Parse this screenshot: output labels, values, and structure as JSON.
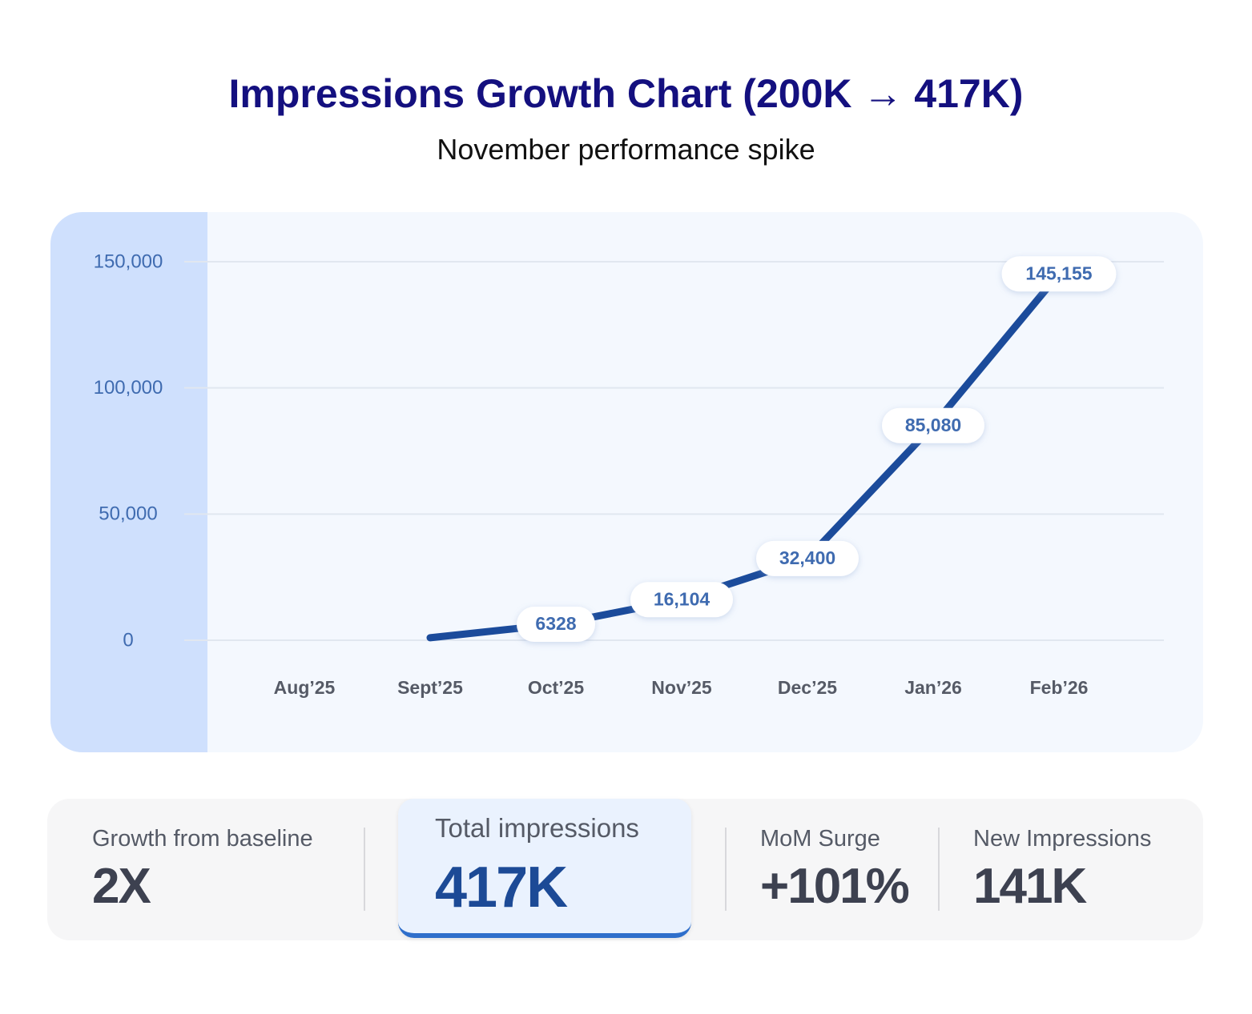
{
  "chart_data": {
    "type": "line",
    "title": "Impressions Growth Chart (200K → 417K)",
    "subtitle": "November performance spike",
    "categories": [
      "Aug’25",
      "Sept’25",
      "Oct’25",
      "Nov’25",
      "Dec’25",
      "Jan’26",
      "Feb’26"
    ],
    "series": [
      {
        "name": "Impressions",
        "color": "#1b4b9b",
        "values": [
          null,
          1000,
          6328,
          16104,
          32400,
          85080,
          145155
        ],
        "value_labels": [
          null,
          null,
          "6328",
          "16,104",
          "32,400",
          "85,080",
          "145,155"
        ]
      }
    ],
    "ylim": [
      0,
      150000
    ],
    "yticks": [
      0,
      {
        "value": 50000,
        "label": "50,000"
      },
      {
        "value": 100000,
        "label": "100,000"
      },
      {
        "value": 150000,
        "label": "150,000"
      }
    ],
    "grid": true
  },
  "stats": [
    {
      "label": "Growth from baseline",
      "value": "2X"
    },
    {
      "label": "Total impressions",
      "value": "417K"
    },
    {
      "label": "MoM Surge",
      "value": "+101%"
    },
    {
      "label": "New Impressions",
      "value": "141K"
    }
  ]
}
